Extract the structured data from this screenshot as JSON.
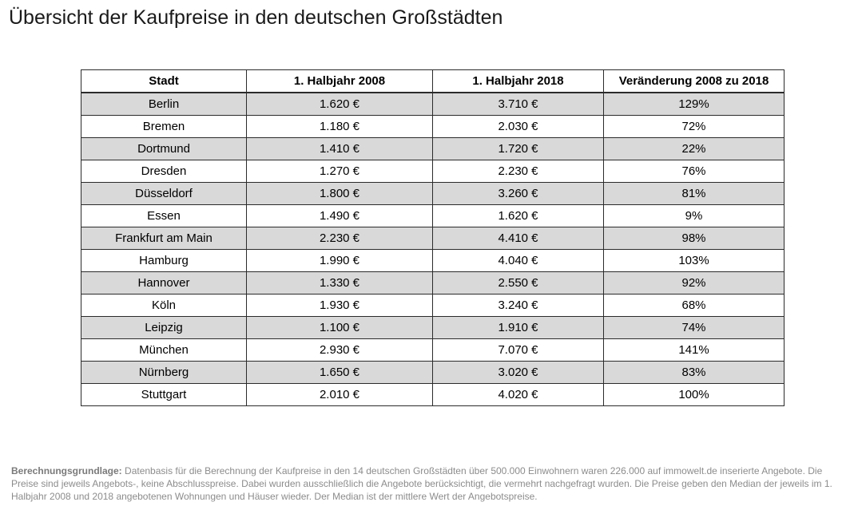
{
  "title": "Übersicht der Kaufpreise in den deutschen Großstädten",
  "table": {
    "headers": [
      "Stadt",
      "1. Halbjahr 2008",
      "1. Halbjahr 2018",
      "Veränderung 2008 zu 2018"
    ],
    "rows": [
      [
        "Berlin",
        "1.620 €",
        "3.710 €",
        "129%"
      ],
      [
        "Bremen",
        "1.180 €",
        "2.030 €",
        "72%"
      ],
      [
        "Dortmund",
        "1.410 €",
        "1.720 €",
        "22%"
      ],
      [
        "Dresden",
        "1.270 €",
        "2.230 €",
        "76%"
      ],
      [
        "Düsseldorf",
        "1.800 €",
        "3.260 €",
        "81%"
      ],
      [
        "Essen",
        "1.490 €",
        "1.620 €",
        "9%"
      ],
      [
        "Frankfurt am Main",
        "2.230 €",
        "4.410 €",
        "98%"
      ],
      [
        "Hamburg",
        "1.990 €",
        "4.040 €",
        "103%"
      ],
      [
        "Hannover",
        "1.330 €",
        "2.550 €",
        "92%"
      ],
      [
        "Köln",
        "1.930 €",
        "3.240 €",
        "68%"
      ],
      [
        "Leipzig",
        "1.100 €",
        "1.910 €",
        "74%"
      ],
      [
        "München",
        "2.930 €",
        "7.070 €",
        "141%"
      ],
      [
        "Nürnberg",
        "1.650 €",
        "3.020 €",
        "83%"
      ],
      [
        "Stuttgart",
        "2.010 €",
        "4.020 €",
        "100%"
      ]
    ]
  },
  "footnote": {
    "label": "Berechnungsgrundlage:",
    "text": "Datenbasis für die Berechnung der Kaufpreise in den 14 deutschen Großstädten über 500.000 Einwohnern waren 226.000 auf immowelt.de inserierte Angebote. Die Preise sind jeweils Angebots-, keine Abschlusspreise. Dabei wurden ausschließlich die Angebote berücksichtigt, die vermehrt nachgefragt wurden. Die Preise geben den Median der jeweils im 1. Halbjahr 2008 und 2018 angebotenen Wohnungen und Häuser wieder. Der Median ist der mittlere Wert der Angebotspreise."
  }
}
